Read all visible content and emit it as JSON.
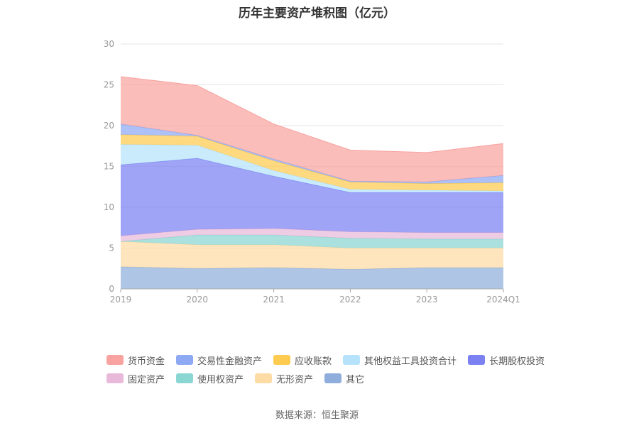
{
  "chart_data": {
    "type": "area",
    "stacked": true,
    "title": "历年主要资产堆积图（亿元）",
    "categories": [
      "2019",
      "2020",
      "2021",
      "2022",
      "2023",
      "2024Q1"
    ],
    "ylim": [
      0,
      30
    ],
    "yticks": [
      "0",
      "5",
      "10",
      "15",
      "20",
      "25",
      "30"
    ],
    "grid": true,
    "legend_position": "bottom",
    "series": [
      {
        "name": "其它",
        "color": "#8faedb",
        "values": [
          2.7,
          2.5,
          2.6,
          2.4,
          2.6,
          2.6
        ]
      },
      {
        "name": "无形资产",
        "color": "#fddba4",
        "values": [
          3.1,
          2.9,
          2.8,
          2.6,
          2.4,
          2.4
        ]
      },
      {
        "name": "使用权资产",
        "color": "#89d6d3",
        "values": [
          0.0,
          1.2,
          1.2,
          1.2,
          1.1,
          1.1
        ]
      },
      {
        "name": "固定资产",
        "color": "#e8b9d9",
        "values": [
          0.7,
          0.7,
          0.8,
          0.8,
          0.8,
          0.8
        ]
      },
      {
        "name": "长期股权投资",
        "color": "#7b81f3",
        "values": [
          8.7,
          8.7,
          6.4,
          4.8,
          4.9,
          4.9
        ]
      },
      {
        "name": "其他权益工具投资合计",
        "color": "#b6e3fb",
        "values": [
          2.5,
          1.6,
          0.7,
          0.4,
          0.3,
          0.2
        ]
      },
      {
        "name": "应收账款",
        "color": "#fdcb4f",
        "values": [
          1.2,
          1.1,
          1.2,
          0.9,
          0.8,
          1.0
        ]
      },
      {
        "name": "交易性金融资产",
        "color": "#8ea9f4",
        "values": [
          1.3,
          0.1,
          0.2,
          0.1,
          0.2,
          0.9
        ]
      },
      {
        "name": "货币资金",
        "color": "#f8a39f",
        "values": [
          5.8,
          6.1,
          4.3,
          3.8,
          3.6,
          3.9
        ]
      }
    ],
    "legend_order": [
      "货币资金",
      "交易性金融资产",
      "应收账款",
      "其他权益工具投资合计",
      "长期股权投资",
      "固定资产",
      "使用权资产",
      "无形资产",
      "其它"
    ]
  },
  "source_text": "数据来源：恒生聚源"
}
